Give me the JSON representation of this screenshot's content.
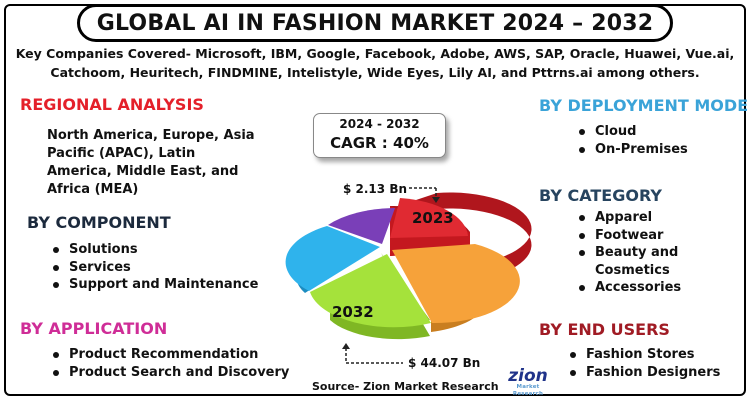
{
  "title": "GLOBAL AI IN FASHION MARKET 2024 – 2032",
  "companies": "Key Companies Covered- Microsoft, IBM, Google, Facebook, Adobe, AWS, SAP, Oracle, Huawei, Vue.ai, Catchoom, Heuritech, FINDMINE, Intelistyle, Wide Eyes, Lily AI, and Pttrns.ai among others.",
  "regional": {
    "heading": "REGIONAL ANALYSIS",
    "text": "North America, Europe, Asia Pacific (APAC), Latin America, Middle East, and Africa (MEA)"
  },
  "component": {
    "heading": "BY COMPONENT",
    "items": [
      "Solutions",
      "Services",
      "Support and Maintenance"
    ]
  },
  "application": {
    "heading": "BY APPLICATION",
    "items": [
      "Product Recommendation",
      "Product Search and Discovery"
    ]
  },
  "deployment": {
    "heading": "BY DEPLOYMENT MODE",
    "items": [
      "Cloud",
      "On-Premises"
    ]
  },
  "category": {
    "heading": "BY CATEGORY",
    "items": [
      "Apparel",
      "Footwear",
      "Beauty and",
      "Cosmetics",
      "Accessories"
    ]
  },
  "end_users": {
    "heading": "BY END USERS",
    "items": [
      "Fashion Stores",
      "Fashion Designers"
    ]
  },
  "cagr": {
    "years": "2024 - 2032",
    "value": "CAGR : 40%"
  },
  "pie": {
    "value_2023": "$ 2.13 Bn",
    "value_2032": "$ 44.07 Bn",
    "label_2023": "2023",
    "label_2032": "2032",
    "colors": [
      "#e02a32",
      "#f6a23a",
      "#a5e23b",
      "#2fb3ec",
      "#7a3fb8"
    ]
  },
  "source": "Source- Zion Market Research",
  "logo": {
    "word": "zion",
    "sub": "Market Research"
  }
}
